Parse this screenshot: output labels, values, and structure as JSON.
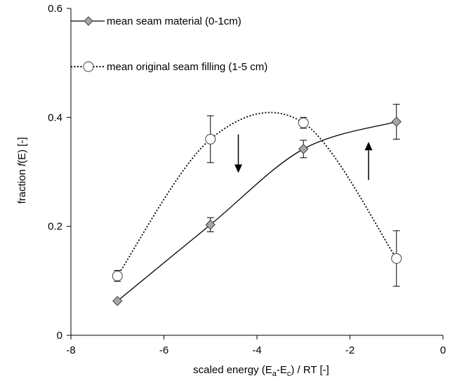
{
  "chart_data": {
    "type": "line",
    "title": "",
    "xlabel": "scaled energy (Ea-Ec) / RT [-]",
    "xlabel_parts": {
      "pre": "scaled energy (E",
      "sub_a": "a",
      "mid": "-E",
      "sub_c": "c",
      "post": ") / RT [-]"
    },
    "ylabel": "fraction f(E) [-]",
    "ylabel_parts": {
      "pre": "fraction ",
      "italic": "f",
      "post": "(E) [-]"
    },
    "xlim": [
      -8,
      0
    ],
    "ylim": [
      0,
      0.6
    ],
    "x_ticks": [
      -8,
      -6,
      -4,
      -2,
      0
    ],
    "x_tick_labels": [
      "-8",
      "-6",
      "-4",
      "-2",
      "0"
    ],
    "y_ticks": [
      0,
      0.2,
      0.4,
      0.6
    ],
    "y_tick_labels": [
      "0",
      "0.2",
      "0.4",
      "0.6"
    ],
    "grid": false,
    "legend_position": "top-left",
    "series": [
      {
        "name": "mean seam material (0-1cm)",
        "marker": "diamond",
        "line_style": "solid",
        "marker_color": "#a6a6a6",
        "x": [
          -7,
          -5,
          -3,
          -1
        ],
        "y": [
          0.063,
          0.203,
          0.342,
          0.392
        ],
        "error": [
          0.0,
          0.013,
          0.016,
          0.032
        ]
      },
      {
        "name": "mean original seam filling (1-5 cm)",
        "marker": "circle",
        "line_style": "dotted",
        "marker_color": "#ffffff",
        "x": [
          -7,
          -5,
          -3,
          -1
        ],
        "y": [
          0.109,
          0.36,
          0.39,
          0.141
        ],
        "error": [
          0.01,
          0.043,
          0.01,
          0.051
        ]
      }
    ],
    "annotations": [
      {
        "type": "arrow",
        "direction": "down",
        "x": -4.4,
        "y_from": 0.369,
        "y_to": 0.298
      },
      {
        "type": "arrow",
        "direction": "up",
        "x": -1.6,
        "y_from": 0.285,
        "y_to": 0.355
      }
    ]
  }
}
